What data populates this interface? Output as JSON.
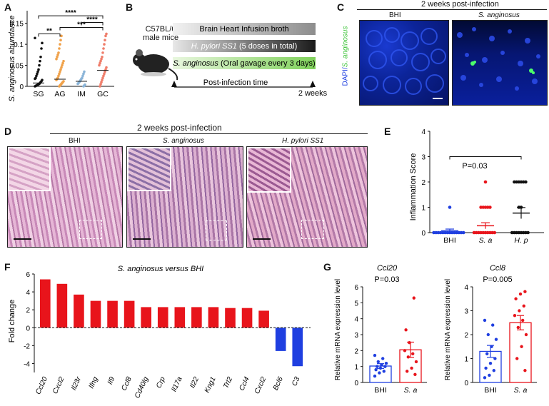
{
  "panels": {
    "A": {
      "letter": "A",
      "ylabel": "S. anginosus abundance",
      "chart_data": {
        "type": "scatter",
        "categories": [
          "SG",
          "AG",
          "IM",
          "GC"
        ],
        "yticks": [
          "0",
          "0.05",
          "0.1",
          "0.15"
        ],
        "ylim": [
          0,
          0.18
        ],
        "means": [
          0.008,
          0.017,
          0.012,
          0.038
        ],
        "series": [
          {
            "values": [
              0.0,
              0.001,
              0.002,
              0.003,
              0.004,
              0.005,
              0.006,
              0.008,
              0.01,
              0.012,
              0.015,
              0.018,
              0.02,
              0.025,
              0.03,
              0.035,
              0.04,
              0.05,
              0.06,
              0.07,
              0.09,
              0.103,
              0.115
            ]
          },
          {
            "values": [
              0.0,
              0.002,
              0.004,
              0.006,
              0.008,
              0.01,
              0.012,
              0.015,
              0.018,
              0.02,
              0.025,
              0.03,
              0.035,
              0.04,
              0.045,
              0.05,
              0.055,
              0.06,
              0.065,
              0.07,
              0.075,
              0.08,
              0.09,
              0.1,
              0.11,
              0.12
            ]
          },
          {
            "values": [
              0.0,
              0.002,
              0.004,
              0.006,
              0.008,
              0.01,
              0.012,
              0.015,
              0.018,
              0.02,
              0.025,
              0.03,
              0.035
            ]
          },
          {
            "values": [
              0.0,
              0.005,
              0.01,
              0.015,
              0.02,
              0.025,
              0.03,
              0.035,
              0.04,
              0.045,
              0.05,
              0.055,
              0.06,
              0.065,
              0.07,
              0.08,
              0.09,
              0.1,
              0.11,
              0.12,
              0.125
            ]
          }
        ],
        "sig": [
          {
            "from": 0,
            "to": 1,
            "label": "**"
          },
          {
            "from": 1,
            "to": 3,
            "label": "***"
          },
          {
            "from": 2,
            "to": 3,
            "label": "****"
          },
          {
            "from": 0,
            "to": 3,
            "label": "****"
          }
        ]
      }
    },
    "B": {
      "letter": "B",
      "mouse_line1": "C57BL/6",
      "mouse_line2": "male mice",
      "bar1": "Brain Heart Infusion broth",
      "bar2_a": "H. pylori SS1",
      "bar2_b": " (5 doses in total)",
      "bar3_a": "S. anginosus",
      "bar3_b": " (Oral gavage every 3 days)",
      "timeline": "Post-infection time",
      "end": "2 weeks"
    },
    "C": {
      "letter": "C",
      "title": "2  weeks post-infection",
      "left": "BHI",
      "right": "S. anginosus",
      "ylabel_a": "DAPI/",
      "ylabel_b": "S. anginosus"
    },
    "D": {
      "letter": "D",
      "title": "2  weeks post-infection",
      "labels": [
        "BHI",
        "S. anginosus",
        "H. pylori SS1"
      ]
    },
    "E": {
      "letter": "E",
      "ylabel": "Inflammation Score",
      "p": "P=0.03",
      "chart_data": {
        "type": "scatter",
        "categories": [
          "BHI",
          "S. a",
          "H. p"
        ],
        "yticks": [
          "0",
          "1",
          "2",
          "3",
          "4"
        ],
        "ylim": [
          0,
          4
        ],
        "means": [
          0.07,
          0.27,
          0.77
        ],
        "sems": [
          0.07,
          0.12,
          0.22
        ],
        "series": [
          {
            "values": [
              0,
              0,
              0,
              0,
              0,
              0,
              0,
              0,
              0,
              0,
              0,
              0,
              0,
              0,
              1
            ]
          },
          {
            "values": [
              0,
              0,
              0,
              0,
              0,
              0,
              0,
              0,
              0,
              0,
              1,
              1,
              1,
              1,
              1,
              2
            ]
          },
          {
            "values": [
              0,
              0,
              0,
              0,
              0,
              0,
              0,
              0,
              1,
              1,
              2,
              2,
              2,
              2,
              2,
              2
            ]
          }
        ]
      }
    },
    "F": {
      "letter": "F",
      "title": "S. anginosus versus BHI",
      "ylabel": "Fold change",
      "chart_data": {
        "type": "bar",
        "categories": [
          "Ccl20",
          "Cxcl2",
          "Il23r",
          "Ifng",
          "Il9",
          "Ccl8",
          "Cd40lg",
          "Crp",
          "Il17a",
          "Il22",
          "Kng1",
          "Trl2",
          "Ccl4",
          "Cxcl2",
          "Bcl6",
          "C3"
        ],
        "values": [
          5.4,
          4.9,
          3.7,
          3.0,
          3.0,
          3.0,
          2.3,
          2.3,
          2.3,
          2.3,
          2.3,
          2.2,
          2.2,
          1.9,
          -2.6,
          -4.3
        ],
        "yticks": [
          "-4",
          "-2",
          "0",
          "2",
          "4",
          "6"
        ],
        "ylim": [
          -5,
          6
        ]
      }
    },
    "G": {
      "letter": "G",
      "ylabel": "Relative mRNA expression level",
      "left": {
        "title": "Ccl20",
        "p": "P=0.03",
        "chart_data": {
          "type": "bar",
          "categories": [
            "BHI",
            "S. a"
          ],
          "values": [
            1.03,
            2.05
          ],
          "sems": [
            0.15,
            0.48
          ],
          "yticks": [
            "0",
            "1",
            "2",
            "3",
            "4",
            "5",
            "6"
          ],
          "ylim": [
            0,
            6
          ],
          "points": [
            [
              0.4,
              0.6,
              0.7,
              0.8,
              0.9,
              1.0,
              1.0,
              1.1,
              1.2,
              1.3,
              1.5,
              1.7
            ],
            [
              0.5,
              0.7,
              0.9,
              1.3,
              1.6,
              1.8,
              2.0,
              2.5,
              5.3,
              3.3
            ]
          ]
        }
      },
      "right": {
        "title": "Ccl8",
        "p": "P=0.005",
        "chart_data": {
          "type": "bar",
          "categories": [
            "BHI",
            "S. a"
          ],
          "values": [
            1.3,
            2.5
          ],
          "sems": [
            0.25,
            0.3
          ],
          "yticks": [
            "0",
            "1",
            "2",
            "3",
            "4"
          ],
          "ylim": [
            0,
            4
          ],
          "points": [
            [
              0.2,
              0.3,
              0.5,
              0.6,
              0.8,
              1.0,
              1.2,
              1.5,
              1.8,
              2.0,
              2.4,
              2.6
            ],
            [
              0.5,
              1.0,
              1.5,
              2.0,
              2.3,
              2.6,
              2.8,
              3.0,
              3.2,
              3.5,
              3.7,
              3.8
            ]
          ]
        }
      }
    }
  },
  "colors": {
    "SG": "#111111",
    "AG": "#f0a24b",
    "IM": "#8ab4d8",
    "GC": "#ef7d6a",
    "red": "#e8141b",
    "blue": "#1f3fe0",
    "dapi": "#0a1f9c"
  }
}
